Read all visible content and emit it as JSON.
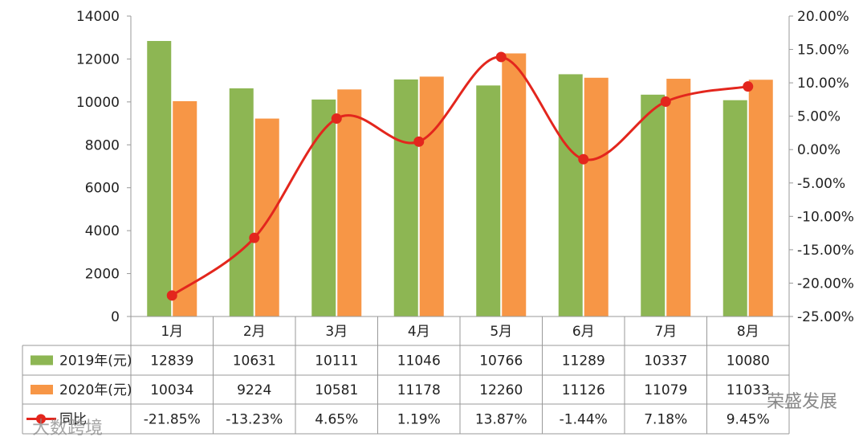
{
  "chart_data": {
    "type": "bar",
    "categories": [
      "1月",
      "2月",
      "3月",
      "4月",
      "5月",
      "6月",
      "7月",
      "8月"
    ],
    "series": [
      {
        "name": "2019年(元)",
        "type": "bar",
        "axis": "left",
        "color": "#8db653",
        "values": [
          12839,
          10631,
          10111,
          11046,
          10766,
          11289,
          10337,
          10080
        ],
        "labels": [
          "12839",
          "10631",
          "10111",
          "11046",
          "10766",
          "11289",
          "10337",
          "10080"
        ]
      },
      {
        "name": "2020年(元)",
        "type": "bar",
        "axis": "left",
        "color": "#f79646",
        "values": [
          10034,
          9224,
          10581,
          11178,
          12260,
          11126,
          11079,
          11033
        ],
        "labels": [
          "10034",
          "9224",
          "10581",
          "11178",
          "12260",
          "11126",
          "11079",
          "11033"
        ]
      },
      {
        "name": "同比",
        "type": "line",
        "axis": "right",
        "color": "#e3261d",
        "values": [
          -21.85,
          -13.23,
          4.65,
          1.19,
          13.87,
          -1.44,
          7.18,
          9.45
        ],
        "labels": [
          "-21.85%",
          "-13.23%",
          "4.65%",
          "1.19%",
          "13.87%",
          "-1.44%",
          "7.18%",
          "9.45%"
        ]
      }
    ],
    "ylim": [
      0,
      14000
    ],
    "y_ticks": [
      "0",
      "2000",
      "4000",
      "6000",
      "8000",
      "10000",
      "12000",
      "14000"
    ],
    "y2lim": [
      -25,
      20
    ],
    "y2_ticks": [
      "-25.00%",
      "-20.00%",
      "-15.00%",
      "-10.00%",
      "-5.00%",
      "0.00%",
      "5.00%",
      "10.00%",
      "15.00%",
      "20.00%"
    ],
    "grid": false,
    "legend": "data-table-left"
  },
  "watermarks": {
    "left": "大数跨境",
    "right": "荣盛发展"
  }
}
